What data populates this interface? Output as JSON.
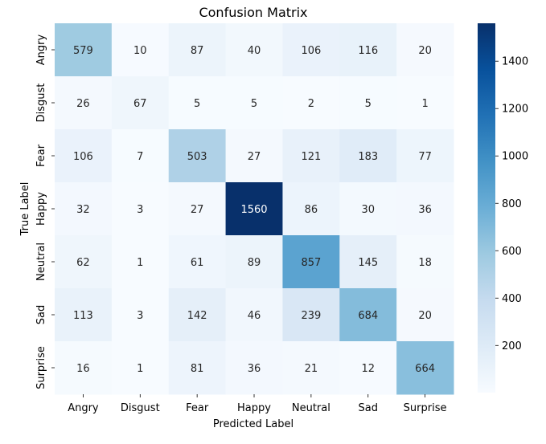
{
  "chart_data": {
    "type": "heatmap",
    "title": "Confusion Matrix",
    "xlabel": "Predicted Label",
    "ylabel": "True Label",
    "x_categories": [
      "Angry",
      "Disgust",
      "Fear",
      "Happy",
      "Neutral",
      "Sad",
      "Surprise"
    ],
    "y_categories": [
      "Angry",
      "Disgust",
      "Fear",
      "Happy",
      "Neutral",
      "Sad",
      "Surprise"
    ],
    "values": [
      [
        579,
        10,
        87,
        40,
        106,
        116,
        20
      ],
      [
        26,
        67,
        5,
        5,
        2,
        5,
        1
      ],
      [
        106,
        7,
        503,
        27,
        121,
        183,
        77
      ],
      [
        32,
        3,
        27,
        1560,
        86,
        30,
        36
      ],
      [
        62,
        1,
        61,
        89,
        857,
        145,
        18
      ],
      [
        113,
        3,
        142,
        46,
        239,
        684,
        20
      ],
      [
        16,
        1,
        81,
        36,
        21,
        12,
        664
      ]
    ],
    "colorbar": {
      "colormap": "Blues",
      "vmin": 1,
      "vmax": 1560,
      "ticks": [
        200,
        400,
        600,
        800,
        1000,
        1200,
        1400
      ]
    },
    "annotations": "cell values shown"
  }
}
